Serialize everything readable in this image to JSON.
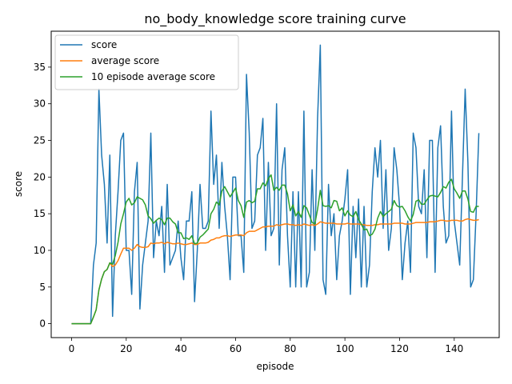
{
  "chart_data": {
    "type": "line",
    "title": "no_body_knowledge score training curve",
    "xlabel": "episode",
    "ylabel": "score",
    "xlim": [
      -7.45,
      156.45
    ],
    "ylim": [
      -1.9,
      39.9
    ],
    "xticks": [
      0,
      20,
      40,
      60,
      80,
      100,
      120,
      140
    ],
    "yticks": [
      0,
      5,
      10,
      15,
      20,
      25,
      30,
      35
    ],
    "grid": false,
    "legend_position": "top-left",
    "series": [
      {
        "name": "score",
        "color": "#1f77b4",
        "x": [
          0,
          1,
          2,
          3,
          4,
          5,
          6,
          7,
          8,
          9,
          10,
          11,
          12,
          13,
          14,
          15,
          16,
          17,
          18,
          19,
          20,
          21,
          22,
          23,
          24,
          25,
          26,
          27,
          28,
          29,
          30,
          31,
          32,
          33,
          34,
          35,
          36,
          37,
          38,
          39,
          40,
          41,
          42,
          43,
          44,
          45,
          46,
          47,
          48,
          49,
          50,
          51,
          52,
          53,
          54,
          55,
          56,
          57,
          58,
          59,
          60,
          61,
          62,
          63,
          64,
          65,
          66,
          67,
          68,
          69,
          70,
          71,
          72,
          73,
          74,
          75,
          76,
          77,
          78,
          79,
          80,
          81,
          82,
          83,
          84,
          85,
          86,
          87,
          88,
          89,
          90,
          91,
          92,
          93,
          94,
          95,
          96,
          97,
          98,
          99,
          100,
          101,
          102,
          103,
          104,
          105,
          106,
          107,
          108,
          109,
          110,
          111,
          112,
          113,
          114,
          115,
          116,
          117,
          118,
          119,
          120,
          121,
          122,
          123,
          124,
          125,
          126,
          127,
          128,
          129,
          130,
          131,
          132,
          133,
          134,
          135,
          136,
          137,
          138,
          139,
          140,
          141,
          142,
          143,
          144,
          145,
          146,
          147,
          148,
          149
        ],
        "values": [
          0,
          0,
          0,
          0,
          0,
          0,
          0,
          0,
          8,
          11,
          32,
          23,
          19,
          11,
          23,
          1,
          12,
          18,
          25,
          26,
          10,
          10,
          4,
          18,
          22,
          2,
          8,
          11,
          14,
          26,
          9,
          14,
          12,
          16,
          7,
          19,
          8,
          9,
          10,
          14,
          9,
          6,
          14,
          14,
          18,
          3,
          10,
          19,
          13,
          13,
          14,
          29,
          19,
          23,
          13,
          22,
          16,
          12,
          6,
          20,
          20,
          12,
          12,
          7,
          34,
          26,
          13,
          14,
          23,
          24,
          28,
          10,
          22,
          12,
          13,
          30,
          8,
          21,
          24,
          12,
          5,
          18,
          5,
          18,
          5,
          29,
          5,
          7,
          21,
          10,
          28,
          38,
          6,
          4,
          19,
          12,
          15,
          6,
          12,
          14,
          17,
          21,
          4,
          16,
          9,
          17,
          5,
          16,
          5,
          8,
          18,
          24,
          20,
          25,
          13,
          21,
          10,
          13,
          24,
          21,
          16,
          6,
          11,
          14,
          7,
          26,
          24,
          16,
          15,
          21,
          9,
          25,
          25,
          7,
          24,
          27,
          16,
          11,
          12,
          29,
          14,
          11,
          8,
          20,
          32,
          22,
          5,
          6,
          15,
          26
        ]
      },
      {
        "name": "average score",
        "color": "#ff7f0e",
        "x": [
          0,
          1,
          2,
          3,
          4,
          5,
          6,
          7,
          8,
          9,
          10,
          11,
          12,
          13,
          14,
          15,
          16,
          17,
          18,
          19,
          20,
          21,
          22,
          23,
          24,
          25,
          26,
          27,
          28,
          29,
          30,
          31,
          32,
          33,
          34,
          35,
          36,
          37,
          38,
          39,
          40,
          41,
          42,
          43,
          44,
          45,
          46,
          47,
          48,
          49,
          50,
          51,
          52,
          53,
          54,
          55,
          56,
          57,
          58,
          59,
          60,
          61,
          62,
          63,
          64,
          65,
          66,
          67,
          68,
          69,
          70,
          71,
          72,
          73,
          74,
          75,
          76,
          77,
          78,
          79,
          80,
          81,
          82,
          83,
          84,
          85,
          86,
          87,
          88,
          89,
          90,
          91,
          92,
          93,
          94,
          95,
          96,
          97,
          98,
          99,
          100,
          101,
          102,
          103,
          104,
          105,
          106,
          107,
          108,
          109,
          110,
          111,
          112,
          113,
          114,
          115,
          116,
          117,
          118,
          119,
          120,
          121,
          122,
          123,
          124,
          125,
          126,
          127,
          128,
          129,
          130,
          131,
          132,
          133,
          134,
          135,
          136,
          137,
          138,
          139,
          140,
          141,
          142,
          143,
          144,
          145,
          146,
          147,
          148,
          149
        ],
        "values": [
          0,
          0,
          0,
          0,
          0,
          0,
          0,
          0,
          0.9,
          1.9,
          4.6,
          6.1,
          7.1,
          7.4,
          8.3,
          7.8,
          8.0,
          8.6,
          9.5,
          10.3,
          10.3,
          10.3,
          10.0,
          10.3,
          10.8,
          10.5,
          10.4,
          10.4,
          10.5,
          11.0,
          10.9,
          11.0,
          11.0,
          11.1,
          10.9,
          11.1,
          11.0,
          10.9,
          10.9,
          11.0,
          10.9,
          10.8,
          10.8,
          10.9,
          11.0,
          10.8,
          10.8,
          11.0,
          11.0,
          11.0,
          11.1,
          11.4,
          11.5,
          11.7,
          11.7,
          11.9,
          12.0,
          12.0,
          11.9,
          12.0,
          12.1,
          12.1,
          12.1,
          12.0,
          12.4,
          12.6,
          12.6,
          12.6,
          12.8,
          13.0,
          13.2,
          13.2,
          13.3,
          13.3,
          13.3,
          13.5,
          13.4,
          13.5,
          13.6,
          13.6,
          13.5,
          13.5,
          13.4,
          13.5,
          13.4,
          13.6,
          13.5,
          13.4,
          13.5,
          13.4,
          13.6,
          13.9,
          13.8,
          13.7,
          13.7,
          13.7,
          13.7,
          13.6,
          13.6,
          13.6,
          13.6,
          13.7,
          13.6,
          13.6,
          13.6,
          13.6,
          13.5,
          13.5,
          13.4,
          13.4,
          13.4,
          13.5,
          13.5,
          13.6,
          13.6,
          13.6,
          13.6,
          13.6,
          13.7,
          13.7,
          13.7,
          13.7,
          13.6,
          13.6,
          13.6,
          13.7,
          13.8,
          13.8,
          13.8,
          13.8,
          13.8,
          13.9,
          13.9,
          13.9,
          14.0,
          14.1,
          14.1,
          14.0,
          14.0,
          14.1,
          14.1,
          14.1,
          14.0,
          14.0,
          14.2,
          14.3,
          14.2,
          14.1,
          14.1,
          14.2
        ]
      },
      {
        "name": "10 episode average score",
        "color": "#2ca02c",
        "x": [
          0,
          1,
          2,
          3,
          4,
          5,
          6,
          7,
          8,
          9,
          10,
          11,
          12,
          13,
          14,
          15,
          16,
          17,
          18,
          19,
          20,
          21,
          22,
          23,
          24,
          25,
          26,
          27,
          28,
          29,
          30,
          31,
          32,
          33,
          34,
          35,
          36,
          37,
          38,
          39,
          40,
          41,
          42,
          43,
          44,
          45,
          46,
          47,
          48,
          49,
          50,
          51,
          52,
          53,
          54,
          55,
          56,
          57,
          58,
          59,
          60,
          61,
          62,
          63,
          64,
          65,
          66,
          67,
          68,
          69,
          70,
          71,
          72,
          73,
          74,
          75,
          76,
          77,
          78,
          79,
          80,
          81,
          82,
          83,
          84,
          85,
          86,
          87,
          88,
          89,
          90,
          91,
          92,
          93,
          94,
          95,
          96,
          97,
          98,
          99,
          100,
          101,
          102,
          103,
          104,
          105,
          106,
          107,
          108,
          109,
          110,
          111,
          112,
          113,
          114,
          115,
          116,
          117,
          118,
          119,
          120,
          121,
          122,
          123,
          124,
          125,
          126,
          127,
          128,
          129,
          130,
          131,
          132,
          133,
          134,
          135,
          136,
          137,
          138,
          139,
          140,
          141,
          142,
          143,
          144,
          145,
          146,
          147,
          148,
          149
        ],
        "values": [
          0,
          0,
          0,
          0,
          0,
          0,
          0,
          0,
          0.9,
          1.9,
          4.6,
          6.1,
          7.1,
          7.4,
          8.3,
          8.1,
          9.3,
          11.1,
          13.6,
          15.0,
          16.6,
          17.1,
          16.2,
          16.5,
          17.3,
          17.1,
          16.9,
          16.2,
          14.7,
          14.3,
          13.7,
          14.1,
          14.4,
          14.2,
          13.5,
          14.4,
          14.4,
          13.9,
          13.6,
          12.4,
          12.4,
          11.6,
          11.7,
          11.5,
          12.0,
          10.9,
          11.0,
          11.8,
          12.1,
          12.5,
          12.9,
          15.0,
          15.6,
          16.6,
          16.2,
          18.1,
          18.7,
          18.0,
          17.3,
          17.9,
          18.5,
          16.8,
          16.1,
          14.5,
          16.6,
          16.8,
          16.5,
          16.7,
          18.4,
          18.4,
          19.2,
          18.8,
          19.8,
          20.3,
          18.2,
          18.6,
          18.2,
          18.9,
          18.9,
          17.7,
          15.4,
          16.2,
          14.7,
          15.3,
          14.5,
          16.1,
          15.8,
          14.8,
          13.8,
          13.6,
          15.6,
          18.2,
          16.1,
          16.0,
          16.1,
          15.8,
          16.8,
          16.7,
          15.4,
          15.8,
          14.7,
          15.4,
          14.8,
          14.6,
          15.3,
          14.2,
          13.6,
          12.8,
          12.9,
          12.0,
          12.2,
          12.9,
          14.4,
          15.3,
          14.6,
          15.0,
          15.3,
          15.6,
          16.8,
          16.1,
          15.9,
          16.0,
          15.4,
          14.6,
          14.0,
          14.9,
          16.7,
          16.9,
          16.3,
          16.3,
          16.9,
          17.4,
          17.5,
          17.4,
          17.3,
          17.9,
          18.7,
          18.5,
          19.3,
          19.7,
          18.4,
          17.8,
          17.1,
          18.1,
          18.1,
          17.0,
          15.3,
          15.2,
          16.0,
          16.0
        ]
      }
    ]
  }
}
